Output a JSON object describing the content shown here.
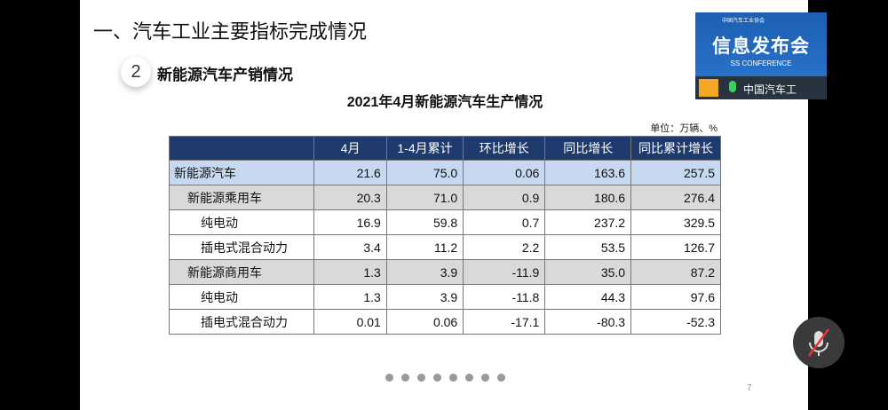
{
  "header": {
    "title": "一、汽车工业主要指标完成情况",
    "section_number": "2",
    "section_title": "新能源汽车产销情况"
  },
  "table": {
    "title": "2021年4月新能源汽车生产情况",
    "unit": "单位：万辆、%",
    "columns": [
      "",
      "4月",
      "1-4月累计",
      "环比增长",
      "同比增长",
      "同比累计增长"
    ],
    "rows": [
      [
        "新能源汽车",
        "21.6",
        "75.0",
        "0.06",
        "163.6",
        "257.5"
      ],
      [
        "新能源乘用车",
        "20.3",
        "71.0",
        "0.9",
        "180.6",
        "276.4"
      ],
      [
        "纯电动",
        "16.9",
        "59.8",
        "0.7",
        "237.2",
        "329.5"
      ],
      [
        "插电式混合动力",
        "3.4",
        "11.2",
        "2.2",
        "53.5",
        "126.7"
      ],
      [
        "新能源商用车",
        "1.3",
        "3.9",
        "-11.9",
        "35.0",
        "87.2"
      ],
      [
        "纯电动",
        "1.3",
        "3.9",
        "-11.8",
        "44.3",
        "97.6"
      ],
      [
        "插电式混合动力",
        "0.01",
        "0.06",
        "-17.1",
        "-80.3",
        "-52.3"
      ]
    ]
  },
  "slide": {
    "page_number": "7"
  },
  "video": {
    "logo": "中国汽车工业协会",
    "banner": "信息发布会",
    "subbanner": "SS CONFERENCE",
    "participant": "中国汽车工"
  }
}
